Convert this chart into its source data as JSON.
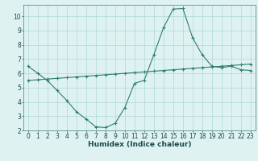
{
  "xlabel": "Humidex (Indice chaleur)",
  "line1_x": [
    0,
    1,
    2,
    3,
    4,
    5,
    6,
    7,
    8,
    9,
    10,
    11,
    12,
    13,
    14,
    15,
    16,
    17,
    18,
    19,
    20,
    21,
    22,
    23
  ],
  "line1_y": [
    6.5,
    6.0,
    5.5,
    4.8,
    4.1,
    3.3,
    2.8,
    2.25,
    2.2,
    2.5,
    3.6,
    5.3,
    5.5,
    7.3,
    9.2,
    10.5,
    10.55,
    8.5,
    7.3,
    6.5,
    6.4,
    6.5,
    6.25,
    6.2
  ],
  "line2_x": [
    0,
    1,
    2,
    3,
    4,
    5,
    6,
    7,
    8,
    9,
    10,
    11,
    12,
    13,
    14,
    15,
    16,
    17,
    18,
    19,
    20,
    21,
    22,
    23
  ],
  "line2_y": [
    5.5,
    5.55,
    5.6,
    5.65,
    5.7,
    5.75,
    5.8,
    5.85,
    5.9,
    5.95,
    6.0,
    6.05,
    6.1,
    6.15,
    6.2,
    6.25,
    6.3,
    6.35,
    6.4,
    6.45,
    6.5,
    6.55,
    6.6,
    6.65
  ],
  "line_color": "#2e7d6e",
  "bg_color": "#dff2f2",
  "grid_color": "#afd8d8",
  "ylim": [
    2,
    10.8
  ],
  "xlim": [
    -0.5,
    23.5
  ],
  "yticks": [
    2,
    3,
    4,
    5,
    6,
    7,
    8,
    9,
    10
  ],
  "xticks": [
    0,
    1,
    2,
    3,
    4,
    5,
    6,
    7,
    8,
    9,
    10,
    11,
    12,
    13,
    14,
    15,
    16,
    17,
    18,
    19,
    20,
    21,
    22,
    23
  ],
  "tick_fontsize": 5.5,
  "xlabel_fontsize": 6.5
}
